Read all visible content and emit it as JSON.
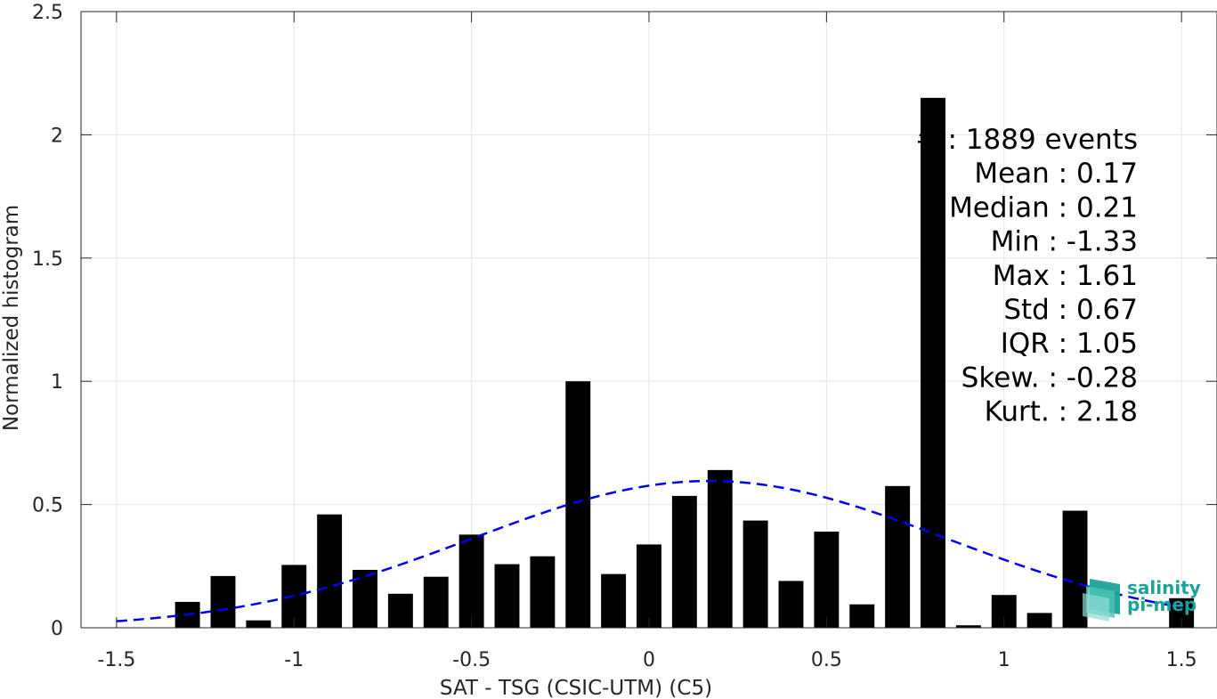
{
  "chart_data": {
    "type": "bar",
    "xlabel": "SAT - TSG (CSIC-UTM) (C5)",
    "ylabel": "Normalized histogram",
    "xlim": [
      -1.6,
      1.6
    ],
    "ylim": [
      0,
      2.5
    ],
    "x_ticks": [
      "-1.5",
      "-1",
      "-0.5",
      "0",
      "0.5",
      "1",
      "1.5"
    ],
    "x_tick_values": [
      -1.5,
      -1,
      -0.5,
      0,
      0.5,
      1,
      1.5
    ],
    "y_ticks": [
      "0",
      "0.5",
      "1",
      "1.5",
      "2",
      "2.5"
    ],
    "y_tick_values": [
      0,
      0.5,
      1,
      1.5,
      2,
      2.5
    ],
    "grid": true,
    "bar_width": 0.07,
    "bars": {
      "x": [
        -1.3,
        -1.2,
        -1.1,
        -1.0,
        -0.9,
        -0.8,
        -0.7,
        -0.6,
        -0.5,
        -0.4,
        -0.3,
        -0.2,
        -0.1,
        0.0,
        0.1,
        0.2,
        0.3,
        0.4,
        0.5,
        0.6,
        0.7,
        0.8,
        0.9,
        1.0,
        1.1,
        1.2,
        1.5
      ],
      "values": [
        0.105,
        0.21,
        0.03,
        0.255,
        0.46,
        0.235,
        0.138,
        0.207,
        0.378,
        0.258,
        0.29,
        1.0,
        0.218,
        0.338,
        0.535,
        0.64,
        0.435,
        0.19,
        0.39,
        0.095,
        0.575,
        2.15,
        0.01,
        0.133,
        0.06,
        0.475,
        0.12
      ],
      "color": "#000000"
    },
    "fit_curve": {
      "type": "normal",
      "mean": 0.17,
      "std": 0.67,
      "x_range": [
        -1.5,
        1.5
      ],
      "color": "#0000ee",
      "style": "dashed"
    },
    "stats": [
      {
        "label": "#",
        "value": ": 1889 events"
      },
      {
        "label": "Mean",
        "value": ": 0.17"
      },
      {
        "label": "Median",
        "value": ": 0.21"
      },
      {
        "label": "Min",
        "value": ": -1.33"
      },
      {
        "label": "Max",
        "value": ": 1.61"
      },
      {
        "label": "Std",
        "value": ": 0.67"
      },
      {
        "label": "IQR",
        "value": ": 1.05"
      },
      {
        "label": "Skew.",
        "value": ": -0.28"
      },
      {
        "label": "Kurt.",
        "value": ": 2.18"
      }
    ]
  },
  "logo": {
    "line1": "salinity",
    "line2": "pi-mep",
    "color": "#1aa39a"
  }
}
